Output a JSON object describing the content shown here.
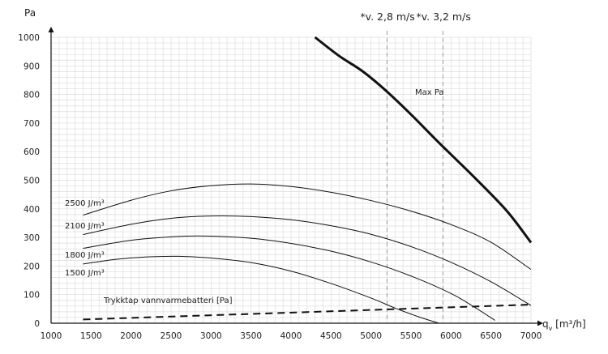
{
  "chart_data": {
    "type": "line",
    "title": "",
    "ylabel": "Pa",
    "xlabel": "q",
    "xlabel_sub": "v",
    "xlabel_unit": " [m³/h]",
    "xlim": [
      1000,
      7000
    ],
    "ylim": [
      0,
      1000
    ],
    "x_ticks": [
      1000,
      1500,
      2000,
      2500,
      3000,
      3500,
      4000,
      4500,
      5000,
      5500,
      6000,
      6500,
      7000
    ],
    "y_ticks": [
      0,
      100,
      200,
      300,
      400,
      500,
      600,
      700,
      800,
      900,
      1000
    ],
    "grid": true,
    "velocity_markers": [
      {
        "label": "*v. 2,8 m/s",
        "x": 5200
      },
      {
        "label": "*v. 3,2 m/s",
        "x": 5900
      }
    ],
    "series": [
      {
        "name": "Max Pa",
        "style": "bold",
        "x": [
          4300,
          4600,
          4900,
          5200,
          5500,
          5800,
          6000,
          6300,
          6700,
          7000
        ],
        "y": [
          1000,
          935,
          880,
          810,
          730,
          645,
          590,
          508,
          392,
          282
        ]
      },
      {
        "name": "2500 J/m³",
        "style": "thin",
        "x": [
          1400,
          2000,
          2500,
          3000,
          3500,
          4000,
          4500,
          5000,
          5500,
          6000,
          6500,
          7000
        ],
        "y": [
          378,
          430,
          463,
          481,
          487,
          478,
          458,
          429,
          392,
          345,
          283,
          188
        ]
      },
      {
        "name": "2100 J/m³",
        "style": "thin",
        "x": [
          1400,
          2000,
          2500,
          3000,
          3500,
          4000,
          4500,
          5000,
          5500,
          6000,
          6500,
          7000
        ],
        "y": [
          310,
          346,
          367,
          375,
          373,
          362,
          341,
          311,
          268,
          213,
          145,
          62
        ]
      },
      {
        "name": "1800 J/m³",
        "style": "thin",
        "x": [
          1400,
          2000,
          2500,
          2900,
          3500,
          4000,
          4500,
          5000,
          5500,
          6000,
          6300,
          6550
        ],
        "y": [
          262,
          290,
          302,
          305,
          297,
          279,
          252,
          214,
          165,
          104,
          55,
          10
        ]
      },
      {
        "name": "1500 J/m³",
        "style": "thin",
        "x": [
          1400,
          1800,
          2200,
          2600,
          3000,
          3500,
          4000,
          4500,
          5000,
          5300,
          5600,
          5850
        ],
        "y": [
          207,
          223,
          232,
          234,
          228,
          212,
          182,
          139,
          88,
          53,
          22,
          0
        ]
      },
      {
        "name": "Trykktap vannvarmebatteri [Pa]",
        "style": "dashed",
        "x": [
          1400,
          7000
        ],
        "y": [
          13,
          65
        ]
      }
    ]
  }
}
